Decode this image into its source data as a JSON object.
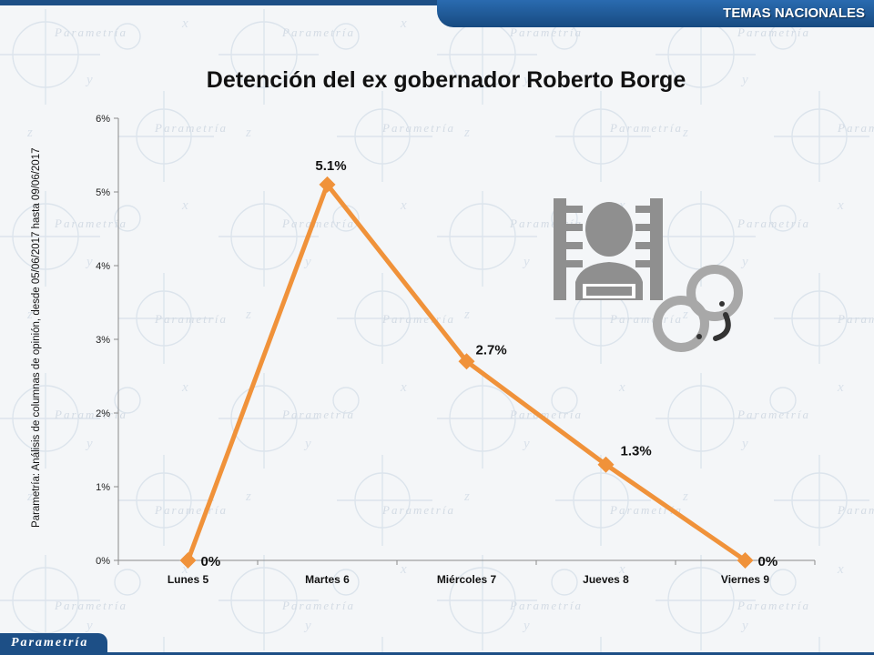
{
  "header": {
    "section_label": "TEMAS NACIONALES"
  },
  "footer": {
    "brand": "Parametría"
  },
  "background": {
    "watermark_word": "Parametría"
  },
  "side_note": "Parametría: Análisis de columnas de opinión, desde 05/06/2017 hasta 09/06/2017",
  "icons": [
    "prisoner-mugshot-icon",
    "handcuffs-icon"
  ],
  "colors": {
    "line": "#f0923a",
    "icon": "#8f8f8f",
    "brand": "#1d4f86"
  },
  "chart_data": {
    "type": "line",
    "title": "Detención del ex gobernador Roberto Borge",
    "categories": [
      "Lunes 5",
      "Martes 6",
      "Miércoles 7",
      "Jueves 8",
      "Viernes 9"
    ],
    "series": [
      {
        "values": [
          0,
          5.1,
          2.7,
          1.3,
          0
        ]
      }
    ],
    "data_labels": [
      "0%",
      "5.1%",
      "2.7%",
      "1.3%",
      "0%"
    ],
    "ylim": [
      0,
      6
    ],
    "yticks": [
      0,
      1,
      2,
      3,
      4,
      5,
      6
    ],
    "ytick_labels": [
      "0%",
      "1%",
      "2%",
      "3%",
      "4%",
      "5%",
      "6%"
    ],
    "grid": false,
    "legend": "none"
  }
}
